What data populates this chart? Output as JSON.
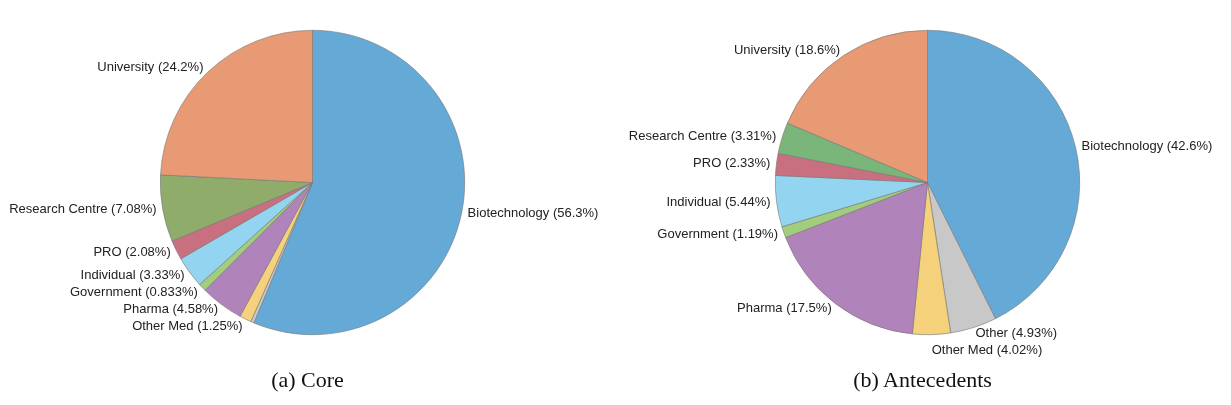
{
  "chart_data": [
    {
      "type": "pie",
      "title": "(a)  Core",
      "categories": [
        "Biotechnology",
        null,
        "Other Med",
        "Pharma",
        "Government",
        "Individual",
        "PRO",
        "Research Centre",
        "University"
      ],
      "values": [
        56.3,
        0.35,
        1.25,
        4.58,
        0.833,
        3.33,
        2.08,
        7.08,
        24.2
      ],
      "value_labels": [
        "(56.3%)",
        null,
        "(1.25%)",
        "(4.58%)",
        "(0.833%)",
        "(3.33%)",
        "(2.08%)",
        "(7.08%)",
        "(24.2%)"
      ],
      "colors": [
        "#65a9d7",
        "#c8c8c8",
        "#f4d17a",
        "#b083bb",
        "#a1cd7d",
        "#93d5f0",
        "#c8707f",
        "#8fac6a",
        "#e79a74"
      ]
    },
    {
      "type": "pie",
      "title": "(b)  Antecedents",
      "categories": [
        "Biotechnology",
        "Other",
        "Other Med",
        "Pharma",
        "Government",
        "Individual",
        "PRO",
        "Research Centre",
        "University"
      ],
      "values": [
        42.6,
        4.93,
        4.02,
        17.5,
        1.19,
        5.44,
        2.33,
        3.31,
        18.6
      ],
      "value_labels": [
        "(42.6%)",
        "(4.93%)",
        "(4.02%)",
        "(17.5%)",
        "(1.19%)",
        "(5.44%)",
        "(2.33%)",
        "(3.31%)",
        "(18.6%)"
      ],
      "colors": [
        "#65a9d7",
        "#c8c8c8",
        "#f4d17a",
        "#b083bb",
        "#a1cd7d",
        "#93d5f0",
        "#c8707f",
        "#7ab57a",
        "#e79a74"
      ]
    }
  ]
}
